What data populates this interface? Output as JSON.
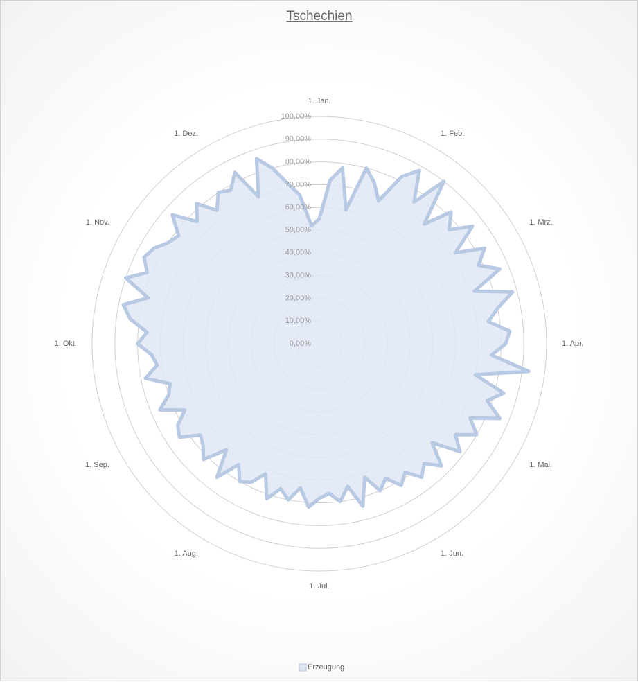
{
  "chart_data": {
    "type": "radar",
    "title": "Tschechien",
    "categories": [
      "1. Jan.",
      null,
      null,
      null,
      null,
      null,
      null,
      null,
      "1. Feb.",
      null,
      null,
      null,
      null,
      null,
      null,
      null,
      "1. Mrz.",
      null,
      null,
      null,
      null,
      null,
      null,
      null,
      "1. Apr.",
      null,
      null,
      null,
      null,
      null,
      null,
      null,
      "1. Mai.",
      null,
      null,
      null,
      null,
      null,
      null,
      null,
      "1. Jun.",
      null,
      null,
      null,
      null,
      null,
      null,
      null,
      "1. Jul.",
      null,
      null,
      null,
      null,
      null,
      null,
      null,
      "1. Aug.",
      null,
      null,
      null,
      null,
      null,
      null,
      null,
      "1. Sep.",
      null,
      null,
      null,
      null,
      null,
      null,
      null,
      "1. Okt.",
      null,
      null,
      null,
      null,
      null,
      null,
      null,
      "1. Nov.",
      null,
      null,
      null,
      null,
      null,
      null,
      null,
      "1. Dez.",
      null,
      null,
      null,
      null,
      null,
      null,
      null
    ],
    "series": [
      {
        "name": "Erzeugung",
        "color": "#b8c9e3",
        "fill": "#e1e8f4",
        "values": [
          55,
          72,
          78,
          60,
          80,
          75,
          68,
          82,
          88,
          75,
          90,
          70,
          82,
          76,
          85,
          72,
          84,
          78,
          86,
          72,
          88,
          80,
          75,
          84,
          82,
          76,
          93,
          70,
          84,
          78,
          86,
          74,
          80,
          72,
          78,
          66,
          76,
          70,
          74,
          68,
          72,
          66,
          70,
          62,
          74,
          64,
          70,
          66,
          68,
          72,
          64,
          70,
          66,
          72,
          62,
          68,
          70,
          64,
          74,
          62,
          72,
          68,
          66,
          74,
          72,
          66,
          76,
          70,
          68,
          78,
          72,
          74,
          80,
          76,
          84,
          88,
          78,
          90,
          82,
          86,
          84,
          80,
          78,
          86,
          76,
          82,
          74,
          80,
          78,
          84,
          70,
          86,
          80,
          72,
          66,
          52
        ]
      }
    ],
    "ylim": [
      0,
      100
    ],
    "yticks": [
      {
        "value": 0,
        "label": "0,00%"
      },
      {
        "value": 10,
        "label": "10,00%"
      },
      {
        "value": 20,
        "label": "20,00%"
      },
      {
        "value": 30,
        "label": "30,00%"
      },
      {
        "value": 40,
        "label": "40,00%"
      },
      {
        "value": 50,
        "label": "50,00%"
      },
      {
        "value": 60,
        "label": "60,00%"
      },
      {
        "value": 70,
        "label": "70,00%"
      },
      {
        "value": 80,
        "label": "80,00%"
      },
      {
        "value": 90,
        "label": "90,00%"
      },
      {
        "value": 100,
        "label": "100,00%"
      }
    ],
    "grid": true,
    "legend": "bottom"
  }
}
